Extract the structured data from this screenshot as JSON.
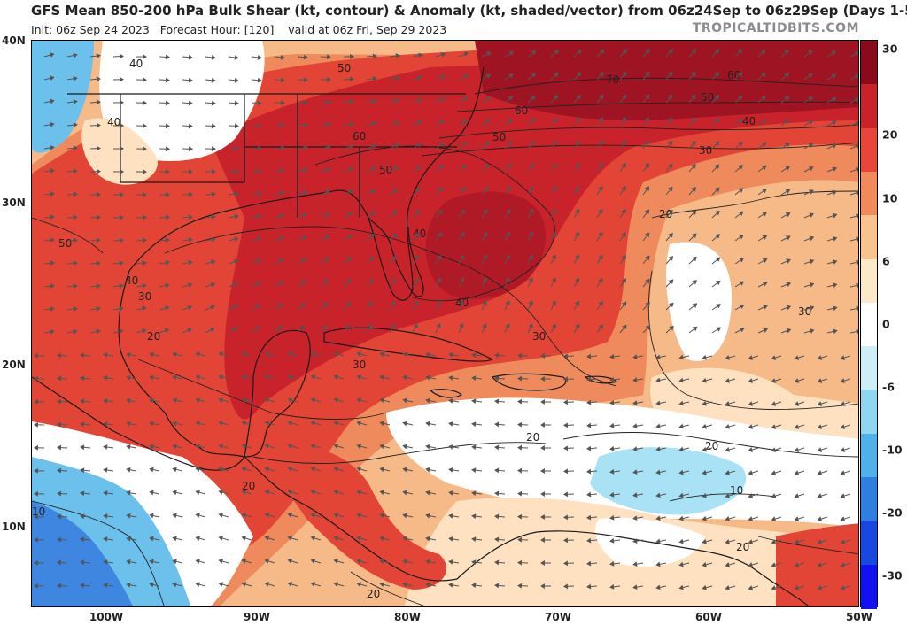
{
  "header": {
    "title": "GFS Mean 850-200 hPa Bulk Shear (kt, contour) & Anomaly (kt, shaded/vector) from 06z24Sep to 06z29Sep (Days 1-5)",
    "init": "Init: 06z Sep 24 2023",
    "forecast_hour": "Forecast Hour: [120]",
    "valid": "valid at 06z Fri, Sep 29 2023",
    "brand": "TROPICALTIDBITS.COM"
  },
  "axes": {
    "latitude_labels": [
      "40N",
      "30N",
      "20N",
      "10N"
    ],
    "longitude_labels": [
      "100W",
      "90W",
      "80W",
      "70W",
      "60W",
      "50W"
    ]
  },
  "colorbar": {
    "labels": [
      "30",
      "20",
      "10",
      "6",
      "0",
      "-6",
      "-10",
      "-20",
      "-30"
    ],
    "colors": [
      "#8b0a1a",
      "#c8232b",
      "#e8463a",
      "#f08a5b",
      "#f8c38c",
      "#fde8c8",
      "#ffffff",
      "#cdeef7",
      "#8fd7f0",
      "#4fb0ea",
      "#2f7fe0",
      "#1848e0",
      "#1212f0"
    ]
  },
  "contour_labels": [
    "40",
    "40",
    "40",
    "50",
    "50",
    "60",
    "70",
    "60",
    "50",
    "40",
    "30",
    "20",
    "30",
    "60",
    "50",
    "40",
    "40",
    "30",
    "30",
    "20",
    "30",
    "20",
    "20",
    "20",
    "10",
    "10",
    "20",
    "20",
    "50"
  ],
  "map_palette": {
    "ocean_white": "#ffffff",
    "peach": "#fde1c0",
    "tan": "#f6b988",
    "orange": "#ee8a5c",
    "red": "#e24535",
    "deep_red": "#c8232b",
    "dark_red": "#9e1423",
    "light_blue": "#cdeef7",
    "mid_blue": "#6cc0ec",
    "blue": "#3f86e0",
    "border": "#1a1a1a",
    "vector": "#555555"
  }
}
